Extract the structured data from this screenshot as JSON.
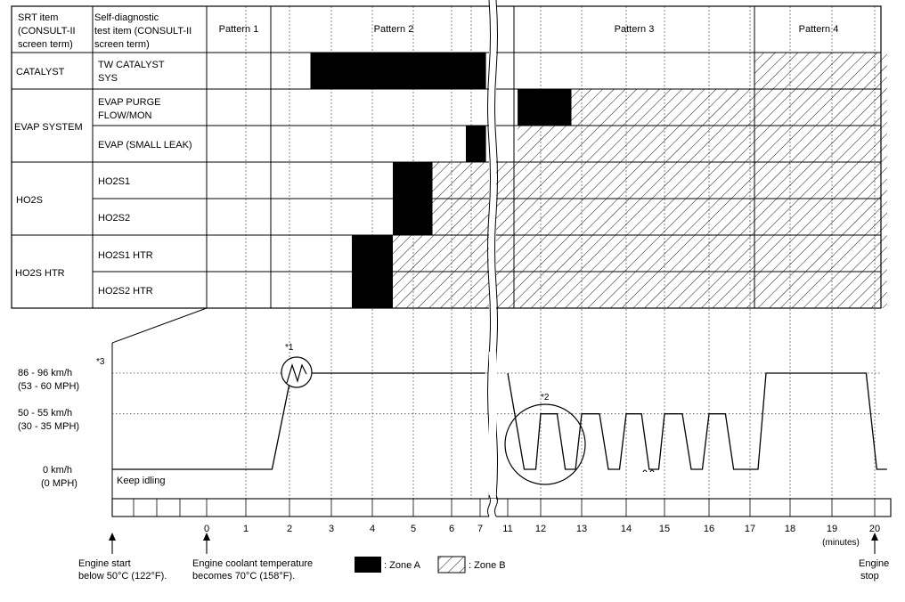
{
  "header": {
    "col1_lines": [
      "SRT item",
      "(CONSULT-II",
      "screen term)"
    ],
    "col2_lines": [
      "Self-diagnostic",
      "test item (CONSULT-II",
      "screen term)"
    ],
    "patterns": [
      "Pattern 1",
      "Pattern 2",
      "Pattern 3",
      "Pattern 4"
    ]
  },
  "groups": [
    {
      "label": "CATALYST"
    },
    {
      "label": "EVAP SYSTEM"
    },
    {
      "label": "HO2S"
    },
    {
      "label": "HO2S HTR"
    }
  ],
  "rows": [
    {
      "label_lines": [
        "TW CATALYST",
        "SYS"
      ],
      "zone_a": [
        2.5,
        7.85
      ],
      "zone_b": [
        17.1,
        20.3
      ]
    },
    {
      "label_lines": [
        "EVAP PURGE",
        "FLOW/MON"
      ],
      "zone_a": [
        11.3,
        12.75
      ],
      "zone_b": [
        12.75,
        20.3
      ]
    },
    {
      "label_lines": [
        "EVAP (SMALL LEAK)"
      ],
      "zone_a": [
        6.5,
        7.85
      ],
      "zone_b": [
        11.3,
        20.3
      ]
    },
    {
      "label_lines": [
        "HO2S1"
      ],
      "zone_a": [
        4.5,
        5.5
      ],
      "zone_b": [
        5.5,
        20.3
      ]
    },
    {
      "label_lines": [
        "HO2S2"
      ],
      "zone_a": [
        4.5,
        5.5
      ],
      "zone_b": [
        5.5,
        20.3
      ]
    },
    {
      "label_lines": [
        "HO2S1 HTR"
      ],
      "zone_a": [
        3.5,
        4.5
      ],
      "zone_b": [
        4.5,
        20.3
      ]
    },
    {
      "label_lines": [
        "HO2S2 HTR"
      ],
      "zone_a": [
        3.5,
        4.5
      ],
      "zone_b": [
        4.5,
        20.3
      ]
    }
  ],
  "speed_levels": [
    {
      "lines": [
        "86 - 96 km/h",
        "(53 - 60 MPH)"
      ],
      "sup": "*3",
      "value_kmh": 91
    },
    {
      "lines": [
        "50 - 55 km/h",
        "(30 - 35 MPH)"
      ],
      "sup": "",
      "value_kmh": 52.5
    },
    {
      "lines": [
        "0 km/h",
        "(0 MPH)"
      ],
      "sup": "",
      "value_kmh": 0
    }
  ],
  "keep_idling": "Keep idling",
  "note_1": "*1",
  "note_2": "*2",
  "time_axis": {
    "tick_labels": [
      "0",
      "1",
      "2",
      "3",
      "4",
      "5",
      "6",
      "7",
      "11",
      "12",
      "13",
      "14",
      "15",
      "16",
      "17",
      "18",
      "19",
      "20"
    ],
    "unit": "(minutes)"
  },
  "speed_profile_minutes_kmh": [
    [
      -2.3,
      0
    ],
    [
      1.6,
      0
    ],
    [
      2.05,
      91
    ],
    [
      7.75,
      91
    ],
    [
      11.0,
      91
    ],
    [
      11.5,
      0
    ],
    [
      11.85,
      0
    ],
    [
      12.0,
      52.5
    ],
    [
      12.4,
      52.5
    ],
    [
      12.6,
      0
    ],
    [
      12.85,
      0
    ],
    [
      13.0,
      52.5
    ],
    [
      13.4,
      52.5
    ],
    [
      13.6,
      0
    ],
    [
      13.85,
      0
    ],
    [
      14.0,
      52.5
    ],
    [
      14.4,
      52.5
    ],
    [
      14.6,
      0
    ],
    [
      14.85,
      0
    ],
    [
      15.0,
      52.5
    ],
    [
      15.4,
      52.5
    ],
    [
      15.6,
      0
    ],
    [
      15.85,
      0
    ],
    [
      16.0,
      52.5
    ],
    [
      16.4,
      52.5
    ],
    [
      16.6,
      0
    ],
    [
      17.2,
      0
    ],
    [
      17.4,
      91
    ],
    [
      19.8,
      91
    ],
    [
      20.05,
      0
    ],
    [
      20.3,
      0
    ]
  ],
  "annotations": {
    "engine_start": [
      "Engine start",
      "below 50°C (122°F)."
    ],
    "coolant": [
      "Engine coolant temperature",
      "becomes 70°C (158°F)."
    ],
    "engine_stop": [
      "Engine",
      "stop"
    ]
  },
  "legend": {
    "zone_a": ": Zone A",
    "zone_b": ": Zone B"
  }
}
